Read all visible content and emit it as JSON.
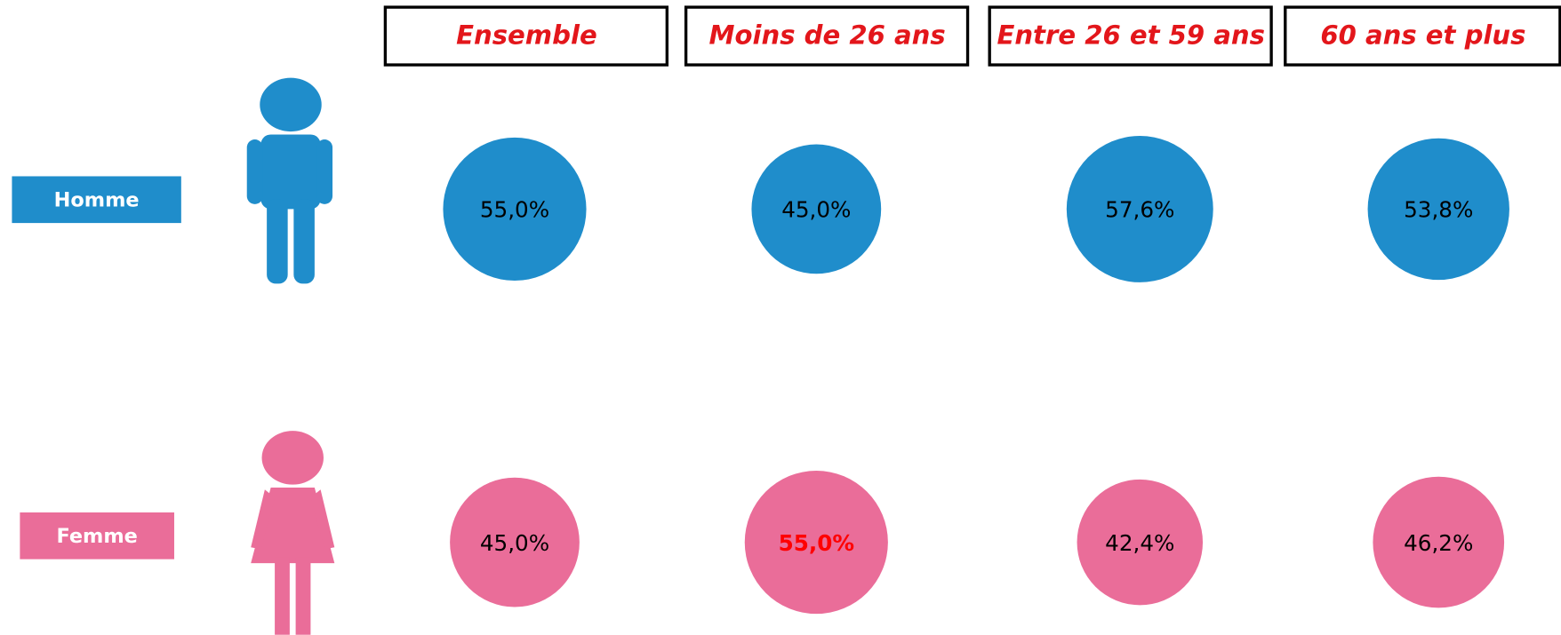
{
  "chart_data": {
    "type": "bubble",
    "categories": [
      "Ensemble",
      "Moins de 26 ans",
      "Entre 26 et 59 ans",
      "60 ans et plus"
    ],
    "series": [
      {
        "name": "Homme",
        "color": "#1f8dcb",
        "values": [
          55.0,
          45.0,
          57.6,
          53.8
        ],
        "value_labels": [
          "55,0%",
          "45,0%",
          "57,6%",
          "53,8%"
        ],
        "label_colors": [
          "#000000",
          "#000000",
          "#000000",
          "#000000"
        ]
      },
      {
        "name": "Femme",
        "color": "#ea6d99",
        "values": [
          45.0,
          55.0,
          42.4,
          46.2
        ],
        "value_labels": [
          "45,0%",
          "55,0%",
          "42,4%",
          "46,2%"
        ],
        "label_colors": [
          "#000000",
          "#ff0000",
          "#000000",
          "#000000"
        ]
      }
    ]
  }
}
